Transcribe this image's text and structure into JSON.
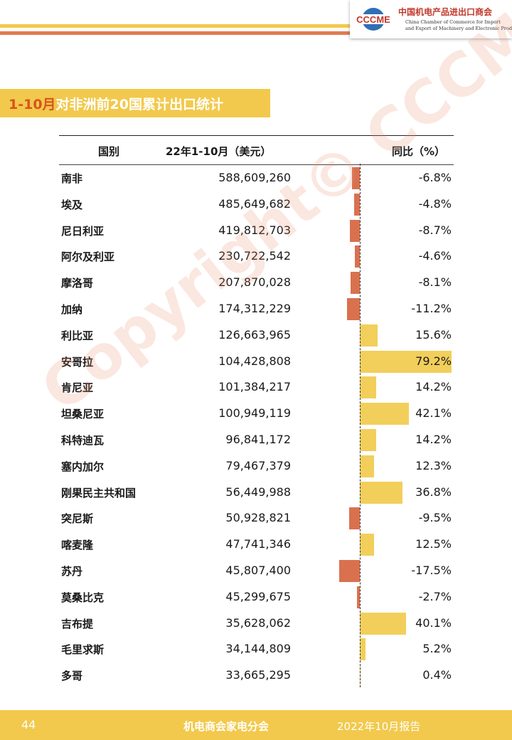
{
  "header": {
    "logo_abbr": "CCCME",
    "logo_cn": "中国机电产品进出口商会",
    "logo_en_line1": "China Chamber of Commerce for Import",
    "logo_en_line2": "and Export of Machinery and Electronic Products"
  },
  "title": {
    "accent": "1-10月",
    "rest": "对非洲前20国累计出口统计"
  },
  "table": {
    "headers": {
      "country": "国别",
      "value": "22年1-10月（美元）",
      "yoy": "同比（%）"
    },
    "rows": [
      {
        "country": "南非",
        "value": "588,609,260",
        "yoy": "-6.8%",
        "pct": -6.8
      },
      {
        "country": "埃及",
        "value": "485,649,682",
        "yoy": "-4.8%",
        "pct": -4.8
      },
      {
        "country": "尼日利亚",
        "value": "419,812,703",
        "yoy": "-8.7%",
        "pct": -8.7
      },
      {
        "country": "阿尔及利亚",
        "value": "230,722,542",
        "yoy": "-4.6%",
        "pct": -4.6
      },
      {
        "country": "摩洛哥",
        "value": "207,870,028",
        "yoy": "-8.1%",
        "pct": -8.1
      },
      {
        "country": "加纳",
        "value": "174,312,229",
        "yoy": "-11.2%",
        "pct": -11.2
      },
      {
        "country": "利比亚",
        "value": "126,663,965",
        "yoy": "15.6%",
        "pct": 15.6
      },
      {
        "country": "安哥拉",
        "value": "104,428,808",
        "yoy": "79.2%",
        "pct": 79.2
      },
      {
        "country": "肯尼亚",
        "value": "101,384,217",
        "yoy": "14.2%",
        "pct": 14.2
      },
      {
        "country": "坦桑尼亚",
        "value": "100,949,119",
        "yoy": "42.1%",
        "pct": 42.1
      },
      {
        "country": "科特迪瓦",
        "value": "96,841,172",
        "yoy": "14.2%",
        "pct": 14.2
      },
      {
        "country": "塞内加尔",
        "value": "79,467,379",
        "yoy": "12.3%",
        "pct": 12.3
      },
      {
        "country": "刚果民主共和国",
        "value": "56,449,988",
        "yoy": "36.8%",
        "pct": 36.8
      },
      {
        "country": "突尼斯",
        "value": "50,928,821",
        "yoy": "-9.5%",
        "pct": -9.5
      },
      {
        "country": "喀麦隆",
        "value": "47,741,346",
        "yoy": "12.5%",
        "pct": 12.5
      },
      {
        "country": "苏丹",
        "value": "45,807,400",
        "yoy": "-17.5%",
        "pct": -17.5
      },
      {
        "country": "莫桑比克",
        "value": "45,299,675",
        "yoy": "-2.7%",
        "pct": -2.7
      },
      {
        "country": "吉布提",
        "value": "35,628,062",
        "yoy": "40.1%",
        "pct": 40.1
      },
      {
        "country": "毛里求斯",
        "value": "34,144,809",
        "yoy": "5.2%",
        "pct": 5.2
      },
      {
        "country": "多哥",
        "value": "33,665,295",
        "yoy": "0.4%",
        "pct": 0.4
      }
    ],
    "colors": {
      "positive": "#f2cf5b",
      "negative": "#d9714f"
    }
  },
  "watermark": "Copyright© CCCME",
  "footer": {
    "page_number": "44",
    "center": "机电商会家电分会",
    "right": "2022年10月报告"
  }
}
